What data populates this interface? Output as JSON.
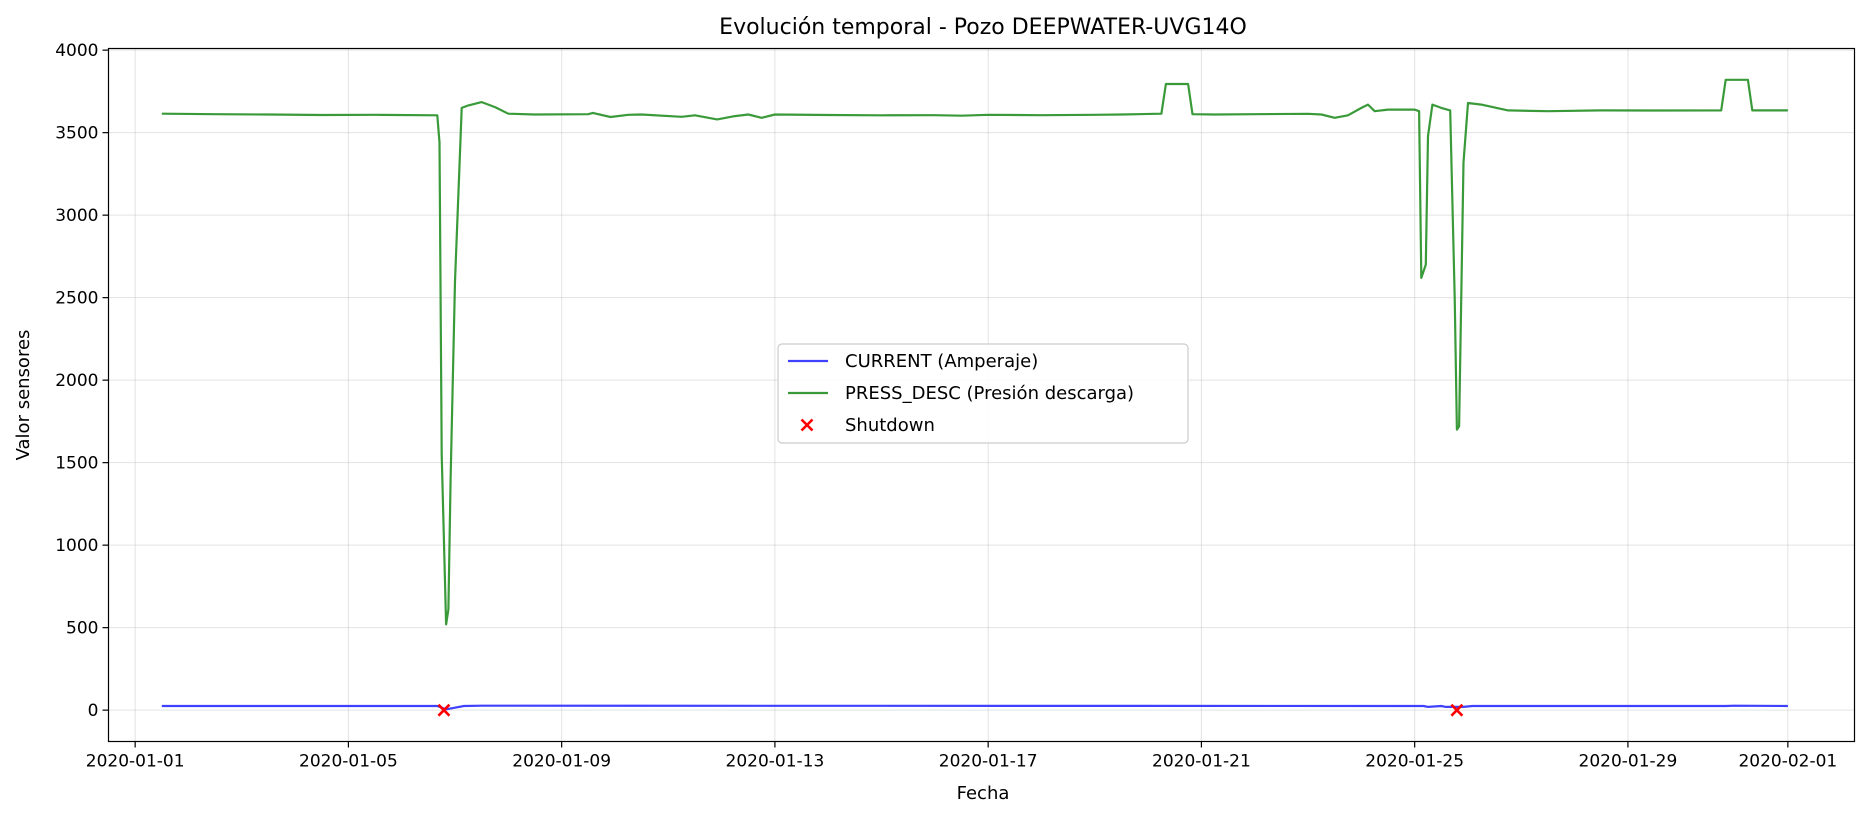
{
  "chart_data": {
    "type": "line",
    "title": "Evolución temporal - Pozo DEEPWATER-UVG14O",
    "xlabel": "Fecha",
    "ylabel": "Valor sensores",
    "x_ticks": [
      "2020-01-01",
      "2020-01-05",
      "2020-01-09",
      "2020-01-13",
      "2020-01-17",
      "2020-01-21",
      "2020-01-25",
      "2020-01-29",
      "2020-02-01"
    ],
    "y_ticks": [
      "0",
      "500",
      "1000",
      "1500",
      "2000",
      "2500",
      "3000",
      "3500",
      "4000"
    ],
    "xlim": [
      "2019-12-31T12:00",
      "2020-02-02T06:00"
    ],
    "ylim": [
      -190,
      4010
    ],
    "grid": true,
    "legend_position": "center",
    "series": [
      {
        "name": "CURRENT (Amperaje)",
        "color": "#4040ff",
        "style": "line",
        "points": [
          [
            "2020-01-01T12:00",
            25
          ],
          [
            "2020-01-06T16:00",
            25
          ],
          [
            "2020-01-06T20:00",
            5
          ],
          [
            "2020-01-07T00:00",
            15
          ],
          [
            "2020-01-07T04:00",
            25
          ],
          [
            "2020-01-07T12:00",
            27
          ],
          [
            "2020-01-25T04:00",
            25
          ],
          [
            "2020-01-25T06:00",
            20
          ],
          [
            "2020-01-25T12:00",
            25
          ],
          [
            "2020-01-25T14:00",
            20
          ],
          [
            "2020-01-25T22:00",
            20
          ],
          [
            "2020-01-26T02:00",
            25
          ],
          [
            "2020-01-30T20:00",
            25
          ],
          [
            "2020-01-31T00:00",
            27
          ],
          [
            "2020-02-01T00:00",
            25
          ]
        ]
      },
      {
        "name": "PRESS_DESC (Presión descarga)",
        "color": "#3a9a3a",
        "style": "line",
        "points": [
          [
            "2020-01-01T12:00",
            3615
          ],
          [
            "2020-01-02T12:00",
            3612
          ],
          [
            "2020-01-03T12:00",
            3610
          ],
          [
            "2020-01-04T12:00",
            3607
          ],
          [
            "2020-01-05T12:00",
            3608
          ],
          [
            "2020-01-06T16:00",
            3605
          ],
          [
            "2020-01-06T17:00",
            3440
          ],
          [
            "2020-01-06T18:00",
            1550
          ],
          [
            "2020-01-06T20:00",
            520
          ],
          [
            "2020-01-06T21:00",
            610
          ],
          [
            "2020-01-06T22:00",
            1400
          ],
          [
            "2020-01-07T00:00",
            2600
          ],
          [
            "2020-01-07T02:00",
            3300
          ],
          [
            "2020-01-07T03:00",
            3650
          ],
          [
            "2020-01-07T06:00",
            3665
          ],
          [
            "2020-01-07T12:00",
            3685
          ],
          [
            "2020-01-07T18:00",
            3655
          ],
          [
            "2020-01-08T00:00",
            3615
          ],
          [
            "2020-01-08T12:00",
            3610
          ],
          [
            "2020-01-09T12:00",
            3612
          ],
          [
            "2020-01-09T14:00",
            3620
          ],
          [
            "2020-01-09T22:00",
            3595
          ],
          [
            "2020-01-10T06:00",
            3608
          ],
          [
            "2020-01-10T12:00",
            3610
          ],
          [
            "2020-01-11T06:00",
            3596
          ],
          [
            "2020-01-11T12:00",
            3605
          ],
          [
            "2020-01-11T22:00",
            3580
          ],
          [
            "2020-01-12T06:00",
            3600
          ],
          [
            "2020-01-12T12:00",
            3610
          ],
          [
            "2020-01-12T18:00",
            3590
          ],
          [
            "2020-01-13T00:00",
            3610
          ],
          [
            "2020-01-14T00:00",
            3607
          ],
          [
            "2020-01-15T00:00",
            3605
          ],
          [
            "2020-01-16T00:00",
            3606
          ],
          [
            "2020-01-16T12:00",
            3603
          ],
          [
            "2020-01-17T00:00",
            3608
          ],
          [
            "2020-01-18T00:00",
            3606
          ],
          [
            "2020-01-19T00:00",
            3608
          ],
          [
            "2020-01-19T12:00",
            3610
          ],
          [
            "2020-01-20T06:00",
            3615
          ],
          [
            "2020-01-20T08:00",
            3795
          ],
          [
            "2020-01-20T18:00",
            3795
          ],
          [
            "2020-01-20T20:00",
            3612
          ],
          [
            "2020-01-21T06:00",
            3610
          ],
          [
            "2020-01-22T00:00",
            3612
          ],
          [
            "2020-01-23T00:00",
            3614
          ],
          [
            "2020-01-23T06:00",
            3610
          ],
          [
            "2020-01-23T12:00",
            3590
          ],
          [
            "2020-01-23T18:00",
            3605
          ],
          [
            "2020-01-24T00:00",
            3650
          ],
          [
            "2020-01-24T03:00",
            3670
          ],
          [
            "2020-01-24T06:00",
            3630
          ],
          [
            "2020-01-24T12:00",
            3640
          ],
          [
            "2020-01-25T00:00",
            3640
          ],
          [
            "2020-01-25T02:00",
            3630
          ],
          [
            "2020-01-25T03:00",
            2620
          ],
          [
            "2020-01-25T05:00",
            2700
          ],
          [
            "2020-01-25T06:00",
            3480
          ],
          [
            "2020-01-25T08:00",
            3670
          ],
          [
            "2020-01-25T12:00",
            3650
          ],
          [
            "2020-01-25T16:00",
            3635
          ],
          [
            "2020-01-25T18:00",
            2500
          ],
          [
            "2020-01-25T19:00",
            1700
          ],
          [
            "2020-01-25T20:00",
            1720
          ],
          [
            "2020-01-25T22:00",
            3320
          ],
          [
            "2020-01-26T00:00",
            3680
          ],
          [
            "2020-01-26T06:00",
            3670
          ],
          [
            "2020-01-26T18:00",
            3635
          ],
          [
            "2020-01-27T12:00",
            3630
          ],
          [
            "2020-01-28T12:00",
            3635
          ],
          [
            "2020-01-29T12:00",
            3634
          ],
          [
            "2020-01-30T18:00",
            3635
          ],
          [
            "2020-01-30T20:00",
            3820
          ],
          [
            "2020-01-31T06:00",
            3820
          ],
          [
            "2020-01-31T08:00",
            3635
          ],
          [
            "2020-02-01T00:00",
            3635
          ]
        ]
      },
      {
        "name": "Shutdown",
        "color": "#ff0000",
        "style": "marker-x",
        "points": [
          [
            "2020-01-06T19:00",
            0
          ],
          [
            "2020-01-25T19:00",
            0
          ]
        ]
      }
    ]
  }
}
